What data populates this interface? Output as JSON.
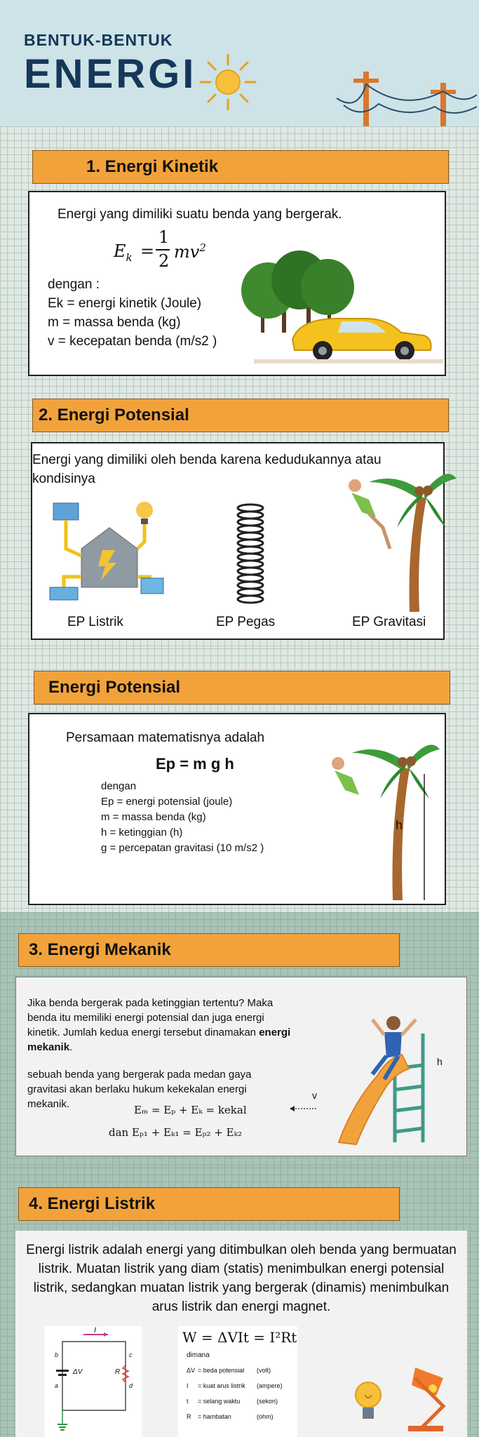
{
  "header": {
    "title_small": "BENTUK-BENTUK",
    "title_big": "ENERGI"
  },
  "kinetik": {
    "heading": "1. Energi Kinetik",
    "definition": "Energi yang dimiliki suatu benda yang bergerak.",
    "formula_lhs": "E",
    "formula_sub": "k",
    "formula_eq": "=",
    "formula_num": "1",
    "formula_den": "2",
    "formula_rhs": "mv",
    "formula_sup": "2",
    "with": "dengan :",
    "var1": "Ek = energi kinetik (Joule)",
    "var2": "m = massa benda (kg)",
    "var3": "v = kecepatan benda (m/s2 )"
  },
  "potensial": {
    "heading": "2. Energi Potensial",
    "definition": "Energi yang dimiliki oleh benda karena kedudukannya atau kondisinya",
    "label_listrik": "EP Listrik",
    "label_pegas": "EP Pegas",
    "label_gravitasi": "EP Gravitasi"
  },
  "potensial2": {
    "heading": "Energi Potensial",
    "intro": "Persamaan matematisnya adalah",
    "formula": "Ep = m g h",
    "with": "dengan",
    "var1": "Ep = energi potensial (joule)",
    "var2": "m = massa benda (kg)",
    "var3": "h = ketinggian (h)",
    "var4": "g = percepatan gravitasi (10 m/s2 )",
    "h_label": "h"
  },
  "mekanik": {
    "heading": "3. Energi Mekanik",
    "para1_a": "Jika benda bergerak pada ketinggian tertentu? Maka benda itu memiliki energi potensial dan juga energi kinetik. Jumlah kedua energi tersebut dinamakan ",
    "para1_bold": "energi mekanik",
    "para1_end": ".",
    "para2": "sebuah benda yang bergerak pada medan gaya gravitasi akan berlaku hukum kekekalan energi mekanik.",
    "eq1": "Eₘ = Eₚ + Eₖ = kekal",
    "eq2": "dan Eₚ₁ + Eₖ₁ = Eₚ₂ + Eₖ₂",
    "v_label": "v",
    "h_label": "h"
  },
  "listrik": {
    "heading": "4. Energi Listrik",
    "definition": "Energi listrik adalah energi yang ditimbulkan oleh benda yang bermuatan listrik. Muatan listrik yang diam (statis) menimbulkan energi potensial listrik, sedangkan muatan listrik yang bergerak (dinamis) menimbulkan arus listrik dan energi magnet.",
    "formula": "W = ΔVIt = I²Rt",
    "where": "dimana",
    "rows": [
      {
        "sym": "ΔV",
        "desc": "= beda potensial",
        "unit": "(volt)"
      },
      {
        "sym": "I",
        "desc": "= kuat arus listrik",
        "unit": "(ampere)"
      },
      {
        "sym": "t",
        "desc": "= selang waktu",
        "unit": "(sekon)"
      },
      {
        "sym": "R",
        "desc": "= hambatan",
        "unit": "(ohm)"
      }
    ],
    "circuit_I": "I",
    "circuit_dV": "ΔV",
    "circuit_R": "R",
    "circuit_a": "a",
    "circuit_b": "b",
    "circuit_c": "c",
    "circuit_d": "d"
  },
  "colors": {
    "banner": "#f2a23b",
    "title": "#15375a",
    "header_bg": "#cde3e7"
  }
}
